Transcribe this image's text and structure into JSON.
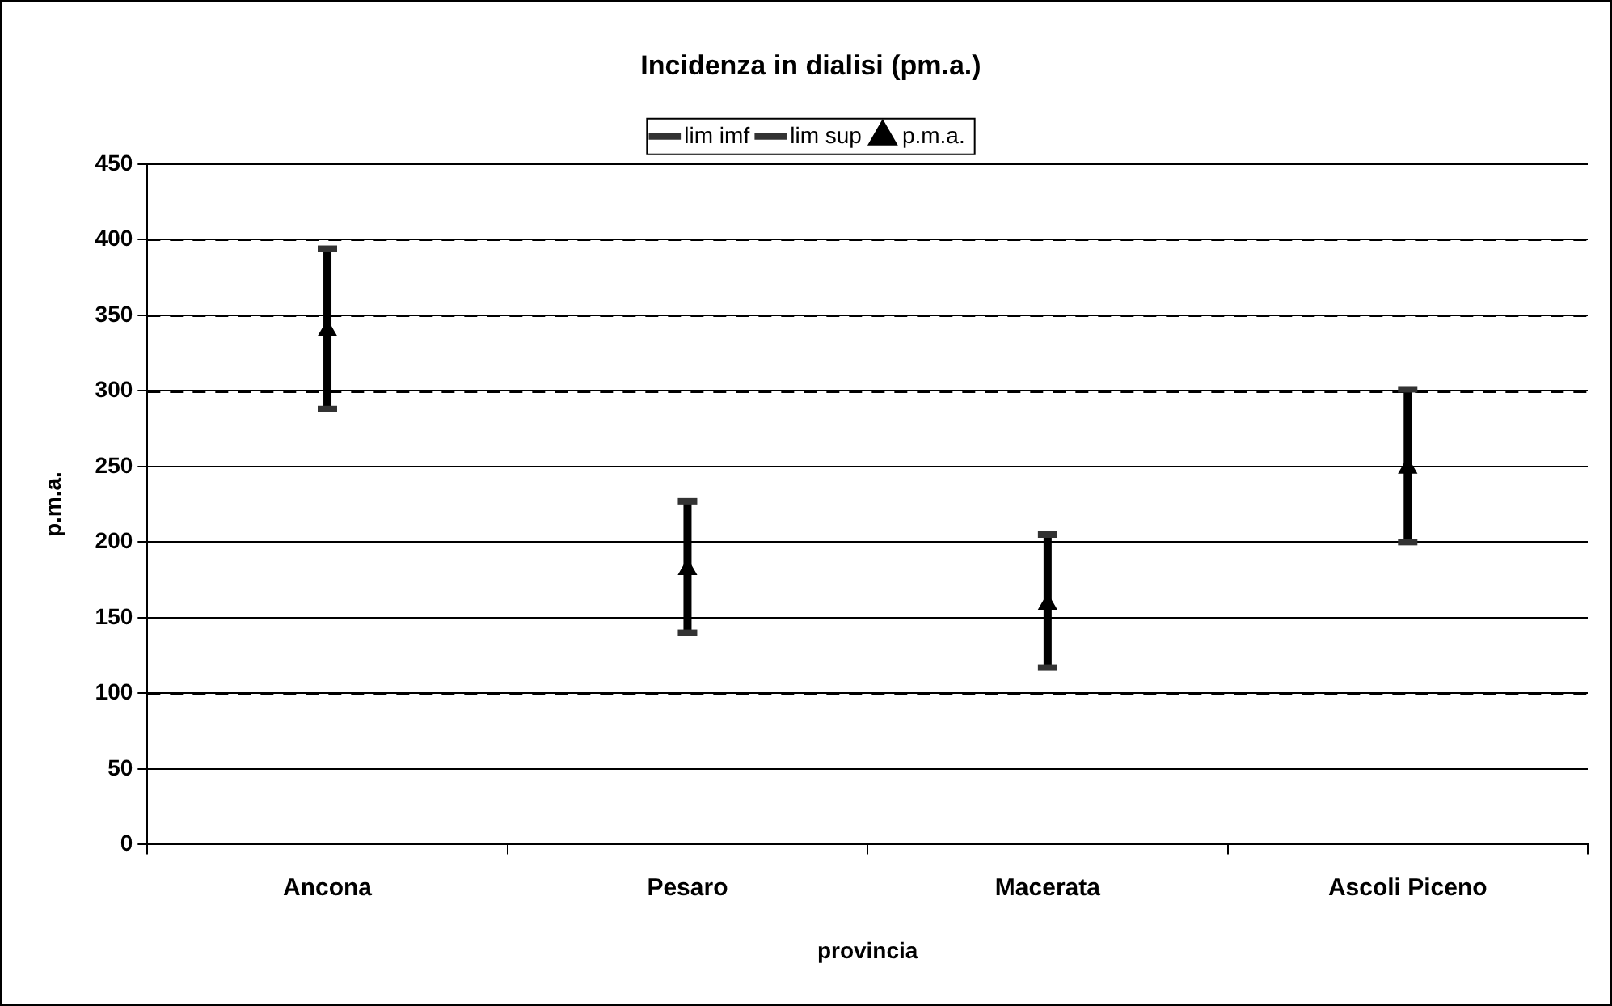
{
  "chart_data": {
    "type": "scatter",
    "title": "Incidenza in dialisi (pm.a.)",
    "xlabel": "provincia",
    "ylabel": "p.m.a.",
    "categories": [
      "Ancona",
      "Pesaro",
      "Macerata",
      "Ascoli Piceno"
    ],
    "series": [
      {
        "name": "lim imf",
        "color": "#333333",
        "values": [
          288,
          140,
          117,
          200
        ]
      },
      {
        "name": "lim sup",
        "color": "#333333",
        "values": [
          394,
          227,
          205,
          301
        ]
      },
      {
        "name": "p.m.a.",
        "color": "#000000",
        "marker": "triangle",
        "values": [
          340,
          182,
          159,
          249
        ]
      }
    ],
    "ylim": [
      0,
      450
    ],
    "yticks": [
      0,
      50,
      100,
      150,
      200,
      250,
      300,
      350,
      400,
      450
    ],
    "grid": "y",
    "legend": "top"
  }
}
